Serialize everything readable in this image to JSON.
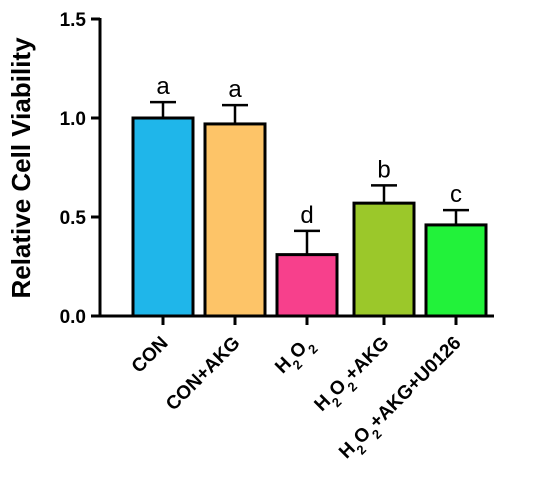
{
  "chart_data": {
    "type": "bar",
    "ylabel": "Relative Cell Viability",
    "ylim": [
      0,
      1.5
    ],
    "yticks": [
      "0.0",
      "0.5",
      "1.0",
      "1.5"
    ],
    "categories": [
      {
        "parts": [
          {
            "t": "CON"
          }
        ]
      },
      {
        "parts": [
          {
            "t": "CON+AKG"
          }
        ]
      },
      {
        "parts": [
          {
            "t": "H"
          },
          {
            "t": "2",
            "sub": true
          },
          {
            "t": "O"
          },
          {
            "t": "2",
            "sub": true
          }
        ]
      },
      {
        "parts": [
          {
            "t": "H"
          },
          {
            "t": "2",
            "sub": true
          },
          {
            "t": "O"
          },
          {
            "t": "2",
            "sub": true
          },
          {
            "t": "+AKG"
          }
        ]
      },
      {
        "parts": [
          {
            "t": "H"
          },
          {
            "t": "2",
            "sub": true
          },
          {
            "t": "O"
          },
          {
            "t": "2",
            "sub": true
          },
          {
            "t": "+AKG+U0126"
          }
        ]
      }
    ],
    "values": [
      1.0,
      0.97,
      0.31,
      0.57,
      0.46
    ],
    "errors": [
      0.08,
      0.095,
      0.12,
      0.09,
      0.075
    ],
    "significance": [
      "a",
      "a",
      "d",
      "b",
      "c"
    ],
    "colors": [
      "#1fb6ea",
      "#fdc468",
      "#f7408c",
      "#9bc82a",
      "#22f23a"
    ]
  }
}
